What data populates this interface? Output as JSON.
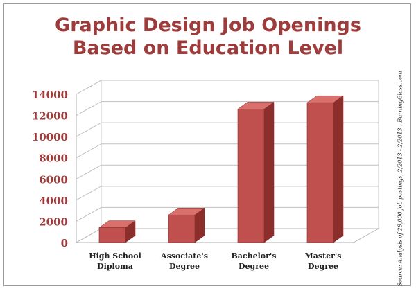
{
  "chart_data": {
    "type": "bar",
    "title_lines": [
      "Graphic Design Job Openings",
      "Based on Education Level"
    ],
    "categories": [
      [
        "High School",
        "Diploma"
      ],
      [
        "Associate's",
        "Degree"
      ],
      [
        "Bachelor's",
        "Degree"
      ],
      [
        "Master's",
        "Degree"
      ]
    ],
    "values": [
      1400,
      2600,
      12600,
      13200
    ],
    "ylim": [
      0,
      14000
    ],
    "y_ticks": [
      "0",
      "2000",
      "4000",
      "6000",
      "8000",
      "10000",
      "12000",
      "14000"
    ],
    "grid": true,
    "bar_color": "#c0504d",
    "bar_side_color": "#8c2f2c",
    "bar_top_color": "#d9706c",
    "axis_label_color": "#9e3b3b",
    "source": "Source: Analysis of 28,000 job postings, 2/2013 - 2/2013 : BurningGlass.com"
  }
}
